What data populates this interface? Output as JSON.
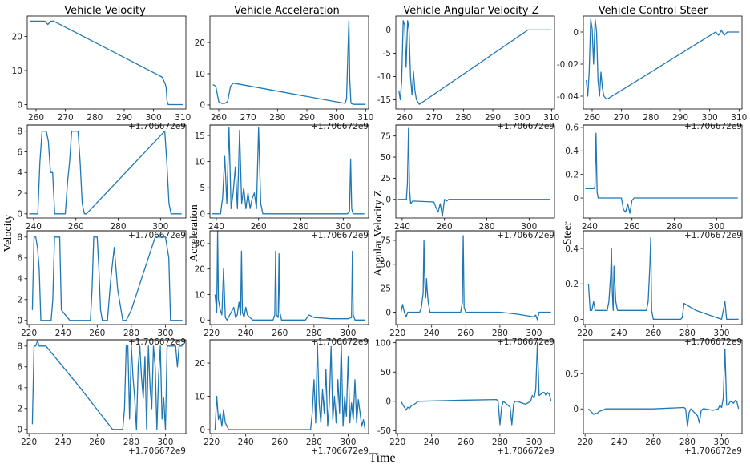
{
  "figure": {
    "column_titles": [
      "Vehicle Velocity",
      "Vehicle Acceleration",
      "Vehicle Angular Velocity Z",
      "Vehicle Control Steer"
    ],
    "row_labels": [
      "Velocity",
      "Acceleration",
      "Angular Velocity Z",
      "Steer"
    ],
    "x_label": "Time",
    "offset_text": "+1.706672e9",
    "colors": {
      "line": "#1f77b4",
      "frame": "#000000",
      "background": "#ffffff"
    }
  },
  "chart_data": [
    {
      "type": "line",
      "row": 0,
      "col": 0,
      "xlim": [
        257,
        311
      ],
      "ylim": [
        -1.3,
        26
      ],
      "xticks": [
        260,
        270,
        280,
        290,
        300,
        310
      ],
      "yticks": [
        0,
        10,
        20
      ],
      "x": [
        258,
        263,
        264,
        265,
        266,
        302,
        303,
        304,
        304.3,
        304.6,
        305,
        310
      ],
      "values": [
        24.5,
        24.5,
        23.5,
        24.5,
        24.5,
        8.5,
        8,
        6,
        5,
        1,
        0,
        0
      ]
    },
    {
      "type": "line",
      "row": 0,
      "col": 1,
      "xlim": [
        257,
        311
      ],
      "ylim": [
        -1.3,
        28.5
      ],
      "xticks": [
        260,
        270,
        280,
        290,
        300,
        310
      ],
      "yticks": [
        0,
        10,
        20
      ],
      "x": [
        258,
        259,
        260,
        261,
        262,
        263,
        264,
        265,
        303,
        303.5,
        304,
        304.3,
        304.6,
        305,
        306,
        310
      ],
      "values": [
        6.5,
        6,
        1,
        0.5,
        0.5,
        1,
        6,
        7,
        0.5,
        2,
        18,
        27,
        8,
        0.5,
        0.2,
        0.2
      ]
    },
    {
      "type": "line",
      "row": 0,
      "col": 2,
      "xlim": [
        257,
        311
      ],
      "ylim": [
        -17,
        3
      ],
      "xticks": [
        260,
        270,
        280,
        290,
        300,
        310
      ],
      "yticks": [
        0,
        -5,
        -10,
        -15
      ],
      "x": [
        258,
        258.5,
        259,
        259.5,
        260,
        260.5,
        261,
        261.5,
        262,
        262.5,
        263,
        263.5,
        264,
        265,
        302,
        303,
        304,
        310
      ],
      "values": [
        -13,
        -15,
        -11,
        2,
        1,
        -8,
        2,
        0,
        -10,
        -14,
        -9,
        -13,
        -15,
        -16,
        0,
        0,
        0,
        0
      ]
    },
    {
      "type": "line",
      "row": 0,
      "col": 3,
      "xlim": [
        257,
        311
      ],
      "ylim": [
        -0.048,
        0.01
      ],
      "xticks": [
        260,
        270,
        280,
        290,
        300,
        310
      ],
      "yticks": [
        0,
        -0.02,
        -0.04
      ],
      "x": [
        258,
        258.5,
        259,
        259.5,
        260,
        260.5,
        261,
        261.5,
        262,
        262.5,
        263,
        263.5,
        264,
        265,
        302,
        303,
        304,
        305,
        306,
        310
      ],
      "values": [
        -0.03,
        -0.04,
        -0.025,
        0.008,
        0.002,
        -0.02,
        0.008,
        0,
        -0.03,
        -0.04,
        -0.025,
        -0.035,
        -0.04,
        -0.042,
        0,
        -0.002,
        0.001,
        -0.002,
        0,
        0
      ]
    },
    {
      "type": "line",
      "row": 1,
      "col": 0,
      "xlim": [
        237,
        312
      ],
      "ylim": [
        -0.4,
        8.6
      ],
      "xticks": [
        240,
        260,
        280,
        300
      ],
      "yticks": [
        0,
        2,
        4,
        6,
        8
      ],
      "x": [
        238,
        242,
        243,
        244,
        245,
        246,
        247,
        248,
        249,
        250,
        251,
        255,
        256,
        257,
        258,
        259,
        260,
        261,
        262,
        263,
        264,
        265,
        302,
        303,
        304,
        305,
        310
      ],
      "values": [
        0,
        0,
        5,
        8,
        8,
        8,
        7,
        4,
        4,
        0,
        0,
        0,
        3,
        5,
        8,
        8,
        8,
        8,
        5,
        1,
        0,
        0,
        8,
        5,
        1,
        0,
        0
      ]
    },
    {
      "type": "line",
      "row": 1,
      "col": 1,
      "xlim": [
        237,
        312
      ],
      "ylim": [
        -0.8,
        17
      ],
      "xticks": [
        240,
        260,
        280,
        300
      ],
      "yticks": [
        0,
        5,
        10,
        15
      ],
      "x": [
        238,
        242,
        243,
        244,
        245,
        246,
        247,
        248,
        249,
        250,
        251,
        252,
        253,
        254,
        255,
        256,
        257,
        258,
        259,
        260,
        261,
        262,
        263,
        302,
        303,
        303.5,
        304,
        304.5,
        305,
        310
      ],
      "values": [
        0,
        0,
        3,
        11,
        2,
        16.5,
        1,
        4,
        9,
        1,
        16,
        2,
        5,
        1,
        4,
        1,
        3,
        4,
        1,
        16.5,
        2,
        0,
        0,
        0,
        0.5,
        10.5,
        1,
        0.2,
        0,
        0
      ]
    },
    {
      "type": "line",
      "row": 1,
      "col": 2,
      "xlim": [
        237,
        312
      ],
      "ylim": [
        -22,
        88
      ],
      "xticks": [
        240,
        260,
        280,
        300
      ],
      "yticks": [
        0,
        25,
        50,
        75
      ],
      "x": [
        238,
        242,
        242.5,
        243,
        243.5,
        244,
        245,
        255,
        256,
        257,
        258,
        259,
        260,
        261,
        262,
        263,
        264,
        265,
        300,
        310
      ],
      "values": [
        0,
        0,
        20,
        84,
        10,
        -5,
        -2,
        -3,
        -10,
        -15,
        -5,
        -20,
        0,
        -2,
        0,
        0,
        0,
        0,
        0,
        0
      ]
    },
    {
      "type": "line",
      "row": 1,
      "col": 3,
      "xlim": [
        237,
        312
      ],
      "ylim": [
        -0.17,
        0.62
      ],
      "xticks": [
        240,
        260,
        280,
        300
      ],
      "yticks": [
        0,
        0.2,
        0.4,
        0.6
      ],
      "x": [
        238,
        242,
        242.5,
        243,
        243.5,
        244,
        245,
        255,
        256,
        257,
        258,
        259,
        260,
        261,
        262,
        263,
        264,
        265,
        300,
        310
      ],
      "values": [
        0.08,
        0.08,
        0.1,
        0.55,
        0.05,
        0,
        0,
        0,
        -0.1,
        -0.12,
        -0.05,
        -0.13,
        -0.02,
        0,
        0,
        0,
        0,
        0,
        0,
        0
      ]
    },
    {
      "type": "line",
      "row": 2,
      "col": 0,
      "xlim": [
        219,
        312
      ],
      "ylim": [
        -0.4,
        8.6
      ],
      "xticks": [
        220,
        240,
        260,
        280,
        300
      ],
      "yticks": [
        0,
        2,
        4,
        6,
        8
      ],
      "x": [
        222,
        223,
        224,
        225,
        226,
        227,
        228,
        229,
        233,
        234,
        235,
        236,
        237,
        238,
        239,
        244,
        255,
        256,
        257,
        258,
        259,
        260,
        261,
        262,
        263,
        266,
        267,
        268,
        270,
        272,
        274,
        275,
        276,
        277,
        280,
        282,
        284,
        286,
        288,
        290,
        292,
        294,
        296,
        298,
        300,
        302,
        303,
        304,
        310
      ],
      "values": [
        1,
        8,
        8,
        7,
        5,
        0,
        0,
        0,
        0,
        2,
        8,
        8,
        8,
        8,
        1,
        0,
        0,
        0,
        3,
        8,
        8,
        8,
        5,
        1,
        0,
        0,
        2,
        4,
        7,
        3,
        1,
        0,
        0,
        0,
        1,
        2,
        3,
        4,
        5,
        6,
        7,
        8,
        8,
        8,
        8,
        6,
        0,
        0,
        0
      ]
    },
    {
      "type": "line",
      "row": 2,
      "col": 1,
      "xlim": [
        219,
        312
      ],
      "ylim": [
        -1.8,
        35
      ],
      "xticks": [
        220,
        240,
        260,
        280,
        300
      ],
      "yticks": [
        0,
        10,
        20,
        30
      ],
      "x": [
        222,
        223,
        223.5,
        224,
        225,
        226,
        227,
        228,
        229,
        233,
        234,
        235,
        236,
        237,
        237.5,
        238,
        239,
        240,
        241,
        244,
        255,
        256,
        257,
        257.5,
        258,
        259,
        259.5,
        260,
        261,
        263,
        275,
        276,
        277,
        280,
        290,
        300,
        302,
        302.5,
        303,
        304,
        310
      ],
      "values": [
        10,
        3,
        35,
        8,
        4,
        2,
        20,
        1,
        0,
        5,
        1,
        2,
        7,
        2,
        27,
        3,
        1,
        5,
        2,
        0,
        0,
        0,
        2,
        27,
        2,
        1,
        26,
        3,
        0,
        0,
        0,
        1,
        2,
        1,
        0.5,
        0.5,
        1,
        27,
        2,
        0,
        0
      ]
    },
    {
      "type": "line",
      "row": 2,
      "col": 2,
      "xlim": [
        219,
        312
      ],
      "ylim": [
        -13,
        85
      ],
      "xticks": [
        220,
        240,
        260,
        280,
        300
      ],
      "yticks": [
        0,
        25,
        50,
        75
      ],
      "x": [
        222,
        223,
        224,
        225,
        226,
        227,
        228,
        233,
        234,
        235,
        235.5,
        236,
        236.5,
        237,
        237.5,
        238,
        239,
        240,
        244,
        255,
        256,
        257,
        258,
        258.5,
        259,
        260,
        262,
        270,
        278,
        280,
        290,
        300,
        301,
        302,
        303,
        310
      ],
      "values": [
        0,
        8,
        0,
        -5,
        0,
        0,
        0,
        0,
        5,
        20,
        75,
        30,
        15,
        35,
        20,
        10,
        0,
        0,
        0,
        0,
        0,
        0,
        10,
        80,
        5,
        0,
        0,
        0,
        0,
        0,
        -2,
        -5,
        -3,
        -8,
        0,
        0
      ]
    },
    {
      "type": "line",
      "row": 2,
      "col": 3,
      "xlim": [
        219,
        312
      ],
      "ylim": [
        -0.03,
        0.5
      ],
      "xticks": [
        220,
        240,
        260,
        280,
        300
      ],
      "yticks": [
        0,
        0.2,
        0.4
      ],
      "x": [
        222,
        223,
        224,
        225,
        226,
        227,
        228,
        230,
        233,
        234,
        235,
        235.5,
        236,
        236.5,
        237,
        237.5,
        238,
        239,
        240,
        244,
        255,
        256,
        257,
        258,
        258.5,
        259,
        260,
        262,
        275,
        276,
        277,
        278,
        285,
        300,
        302,
        303,
        310
      ],
      "values": [
        0.2,
        0.05,
        0.05,
        0.1,
        0.05,
        0.05,
        0.05,
        0.05,
        0.05,
        0.1,
        0.25,
        0.4,
        0.15,
        0.05,
        0.3,
        0.2,
        0.1,
        0.05,
        0.05,
        0.05,
        0.05,
        0.05,
        0.1,
        0.3,
        0.46,
        0.05,
        0,
        0,
        0,
        0,
        0.01,
        0.09,
        0.05,
        0,
        0.1,
        0,
        0
      ]
    },
    {
      "type": "line",
      "row": 3,
      "col": 0,
      "xlim": [
        219,
        312
      ],
      "ylim": [
        -0.4,
        8.6
      ],
      "xticks": [
        220,
        240,
        260,
        280,
        300
      ],
      "yticks": [
        0,
        2,
        4,
        6,
        8
      ],
      "x": [
        222,
        223,
        224,
        225,
        226,
        229,
        230,
        250,
        269,
        270,
        275,
        276,
        277,
        278,
        279,
        280,
        281,
        282,
        283,
        284,
        285,
        286,
        287,
        288,
        289,
        290,
        291,
        292,
        293,
        294,
        295,
        296,
        297,
        298,
        299,
        300,
        301,
        302,
        303,
        304,
        305,
        306,
        307,
        308,
        309,
        310
      ],
      "values": [
        0.5,
        8,
        8,
        8.5,
        8,
        8,
        8,
        4,
        0,
        0,
        0,
        2,
        8,
        8,
        1,
        8,
        5,
        3,
        0,
        6,
        8,
        5,
        3,
        7,
        0,
        8,
        4,
        2,
        8,
        6,
        0,
        5,
        8,
        1,
        3,
        0,
        8,
        8,
        8,
        8,
        8,
        8,
        6,
        8,
        8,
        8
      ]
    },
    {
      "type": "line",
      "row": 3,
      "col": 1,
      "xlim": [
        219,
        312
      ],
      "ylim": [
        -1.2,
        27
      ],
      "xticks": [
        220,
        240,
        260,
        280,
        300
      ],
      "yticks": [
        0,
        10,
        20
      ],
      "x": [
        222,
        223,
        224,
        225,
        226,
        227,
        228,
        230,
        275,
        278,
        279,
        280,
        281,
        282,
        283,
        284,
        285,
        286,
        287,
        288,
        289,
        290,
        291,
        292,
        293,
        294,
        295,
        296,
        297,
        298,
        299,
        300,
        301,
        302,
        303,
        304,
        305,
        306,
        307,
        308,
        309,
        310
      ],
      "values": [
        0,
        10,
        3,
        5,
        1,
        6,
        2,
        0,
        0,
        0,
        5,
        15,
        2,
        26,
        8,
        2,
        12,
        5,
        18,
        1,
        8,
        25,
        3,
        10,
        2,
        15,
        5,
        26,
        1,
        10,
        4,
        22,
        2,
        8,
        3,
        15,
        2,
        9,
        5,
        1,
        3,
        0
      ]
    },
    {
      "type": "line",
      "row": 3,
      "col": 2,
      "xlim": [
        219,
        312
      ],
      "ylim": [
        -55,
        105
      ],
      "xticks": [
        220,
        240,
        260,
        280,
        300
      ],
      "yticks": [
        -50,
        0,
        50,
        100
      ],
      "x": [
        222,
        224,
        225,
        226,
        227,
        228,
        230,
        232,
        260,
        278,
        279,
        280,
        281,
        282,
        284,
        286,
        287,
        288,
        289,
        290,
        295,
        298,
        299,
        300,
        301,
        302,
        303,
        304,
        305,
        306,
        307,
        308,
        309,
        310
      ],
      "values": [
        0,
        -10,
        -15,
        -10,
        -12,
        -8,
        -5,
        0,
        2,
        3,
        0,
        -40,
        -10,
        0,
        -5,
        -10,
        -40,
        -5,
        0,
        0,
        -5,
        0,
        10,
        5,
        20,
        100,
        10,
        12,
        15,
        15,
        10,
        15,
        12,
        0
      ]
    },
    {
      "type": "line",
      "row": 3,
      "col": 3,
      "xlim": [
        219,
        312
      ],
      "ylim": [
        -0.35,
        0.98
      ],
      "xticks": [
        220,
        240,
        260,
        280,
        300
      ],
      "yticks": [
        0,
        0.5
      ],
      "x": [
        222,
        224,
        225,
        226,
        227,
        228,
        230,
        232,
        260,
        278,
        279,
        280,
        281,
        282,
        284,
        286,
        287,
        288,
        289,
        290,
        295,
        298,
        299,
        300,
        301,
        302,
        303,
        304,
        305,
        306,
        307,
        308,
        309,
        310
      ],
      "values": [
        0,
        -0.05,
        -0.08,
        -0.06,
        -0.07,
        -0.04,
        -0.02,
        0,
        0,
        0.02,
        0,
        -0.25,
        -0.05,
        0,
        -0.05,
        -0.1,
        -0.2,
        -0.03,
        0,
        0,
        -0.02,
        0,
        0.05,
        0.02,
        0.15,
        0.85,
        0.05,
        0.06,
        0.1,
        0.1,
        0.08,
        0.12,
        0.1,
        0
      ]
    }
  ]
}
